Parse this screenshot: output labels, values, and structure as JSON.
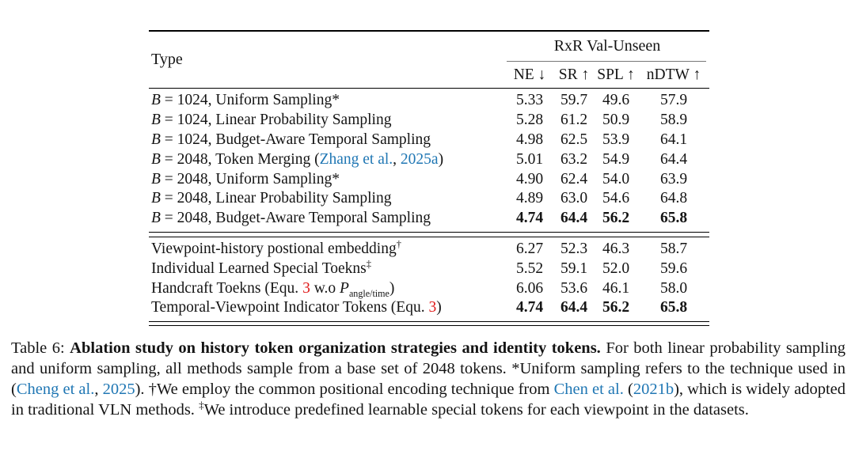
{
  "colors": {
    "link_blue": "#2077b4",
    "ref_red": "#e01b1b",
    "text": "#141414"
  },
  "table": {
    "header": {
      "type_label": "Type",
      "group_label": "RxR Val-Unseen",
      "metric_columns": [
        "NE ↓",
        "SR ↑",
        "SPL ↑",
        "nDTW ↑"
      ]
    },
    "sections": [
      {
        "rows": [
          {
            "label": [
              [
                "i",
                "B"
              ],
              [
                "p",
                " = 1024, Uniform Sampling*"
              ]
            ],
            "values": [
              "5.33",
              "59.7",
              "49.6",
              "57.9"
            ],
            "bold": false
          },
          {
            "label": [
              [
                "i",
                "B"
              ],
              [
                "p",
                " = 1024, Linear Probability Sampling"
              ]
            ],
            "values": [
              "5.28",
              "61.2",
              "50.9",
              "58.9"
            ],
            "bold": false
          },
          {
            "label": [
              [
                "i",
                "B"
              ],
              [
                "p",
                " = 1024, Budget-Aware Temporal Sampling"
              ]
            ],
            "values": [
              "4.98",
              "62.5",
              "53.9",
              "64.1"
            ],
            "bold": false
          },
          {
            "label": [
              [
                "i",
                "B"
              ],
              [
                "p",
                " = 2048, Token Merging ("
              ],
              [
                "l",
                "Zhang et al."
              ],
              [
                "p",
                ", "
              ],
              [
                "l",
                "2025a"
              ],
              [
                "p",
                ")"
              ]
            ],
            "values": [
              "5.01",
              "63.2",
              "54.9",
              "64.4"
            ],
            "bold": false
          },
          {
            "label": [
              [
                "i",
                "B"
              ],
              [
                "p",
                " = 2048, Uniform Sampling*"
              ]
            ],
            "values": [
              "4.90",
              "62.4",
              "54.0",
              "63.9"
            ],
            "bold": false
          },
          {
            "label": [
              [
                "i",
                "B"
              ],
              [
                "p",
                " = 2048, Linear Probability Sampling"
              ]
            ],
            "values": [
              "4.89",
              "63.0",
              "54.6",
              "64.8"
            ],
            "bold": false
          },
          {
            "label": [
              [
                "i",
                "B"
              ],
              [
                "p",
                " = 2048, Budget-Aware Temporal Sampling"
              ]
            ],
            "values": [
              "4.74",
              "64.4",
              "56.2",
              "65.8"
            ],
            "bold": true
          }
        ]
      },
      {
        "rows": [
          {
            "label": [
              [
                "p",
                "Viewpoint-history postional embedding"
              ],
              [
                "sup",
                "†"
              ]
            ],
            "values": [
              "6.27",
              "52.3",
              "46.3",
              "58.7"
            ],
            "bold": false
          },
          {
            "label": [
              [
                "p",
                "Individual Learned Special Toekns"
              ],
              [
                "sup",
                "‡"
              ]
            ],
            "values": [
              "5.52",
              "59.1",
              "52.0",
              "59.6"
            ],
            "bold": false
          },
          {
            "label": [
              [
                "p",
                "Handcraft Toekns (Equ. "
              ],
              [
                "r",
                "3"
              ],
              [
                "p",
                " w.o "
              ],
              [
                "cal",
                "P"
              ],
              [
                "sub",
                "angle/time"
              ],
              [
                "p",
                ")"
              ]
            ],
            "values": [
              "6.06",
              "53.6",
              "46.1",
              "58.0"
            ],
            "bold": false
          },
          {
            "label": [
              [
                "p",
                "Temporal-Viewpoint Indicator Tokens (Equ. "
              ],
              [
                "r",
                "3"
              ],
              [
                "p",
                ")"
              ]
            ],
            "values": [
              "4.74",
              "64.4",
              "56.2",
              "65.8"
            ],
            "bold": true
          }
        ]
      }
    ]
  },
  "caption": {
    "segments": [
      [
        "p",
        "Table 6: "
      ],
      [
        "b",
        "Ablation study on history token organization strategies and identity tokens. "
      ],
      [
        "p",
        "For both linear probability sampling and uniform sampling, all methods sample from a base set of 2048 tokens. *Uniform sampling refers to the technique used in ("
      ],
      [
        "l",
        "Cheng et al."
      ],
      [
        "p",
        ", "
      ],
      [
        "l",
        "2025"
      ],
      [
        "p",
        "). †We employ the common positional encoding technique from "
      ],
      [
        "l",
        "Chen et al."
      ],
      [
        "p",
        " ("
      ],
      [
        "l",
        "2021b"
      ],
      [
        "p",
        "), which is widely adopted in traditional VLN methods. "
      ],
      [
        "sup",
        "‡"
      ],
      [
        "p",
        "We introduce predefined learnable special tokens for each viewpoint in the datasets."
      ]
    ]
  }
}
